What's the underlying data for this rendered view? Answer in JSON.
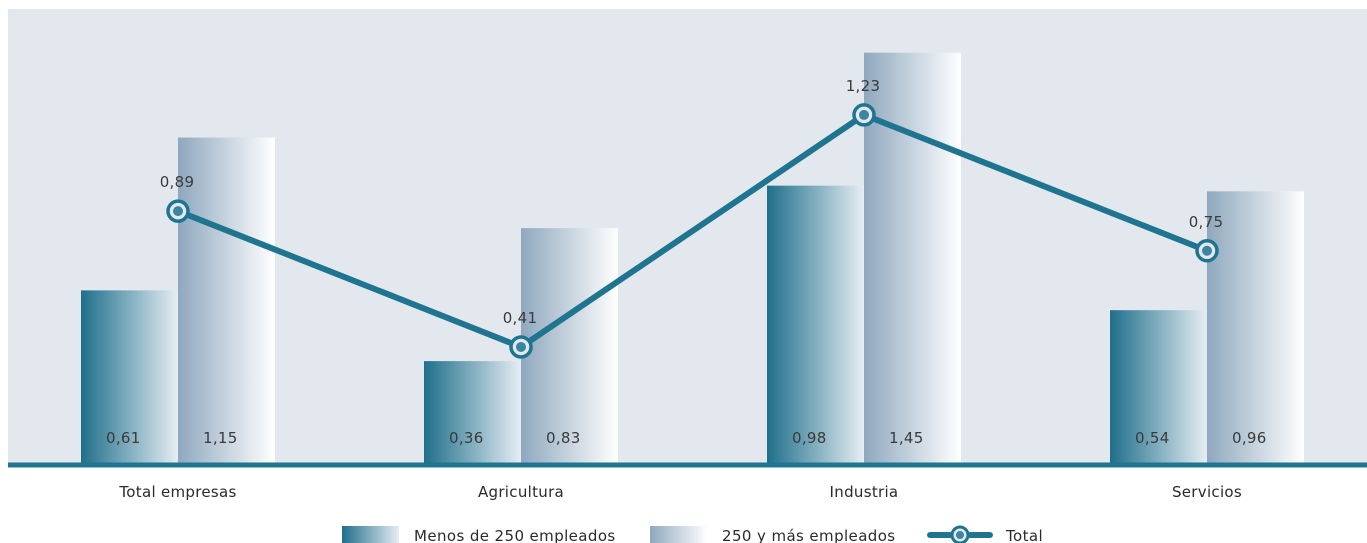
{
  "chart_data": {
    "type": "bar",
    "categories": [
      "Total empresas",
      "Agricultura",
      "Industria",
      "Servicios"
    ],
    "series": [
      {
        "name": "Menos de 250 empleados",
        "type": "bar",
        "values": [
          0.61,
          0.36,
          0.98,
          0.54
        ],
        "labels": [
          "0,61",
          "0,36",
          "0,98",
          "0,54"
        ],
        "color": "#1f6f8b"
      },
      {
        "name": "250 y más empleados",
        "type": "bar",
        "values": [
          1.15,
          0.83,
          1.45,
          0.96
        ],
        "labels": [
          "1,15",
          "0,83",
          "1,45",
          "0,96"
        ],
        "color": "#8fa8be"
      },
      {
        "name": "Total",
        "type": "line",
        "values": [
          0.89,
          0.41,
          1.23,
          0.75
        ],
        "labels": [
          "0,89",
          "0,41",
          "1,23",
          "0,75"
        ],
        "color": "#1f7590"
      }
    ],
    "legend_position": "bottom",
    "background": "#e3e8ef",
    "baseline_color": "#1f7590",
    "grid": false
  }
}
